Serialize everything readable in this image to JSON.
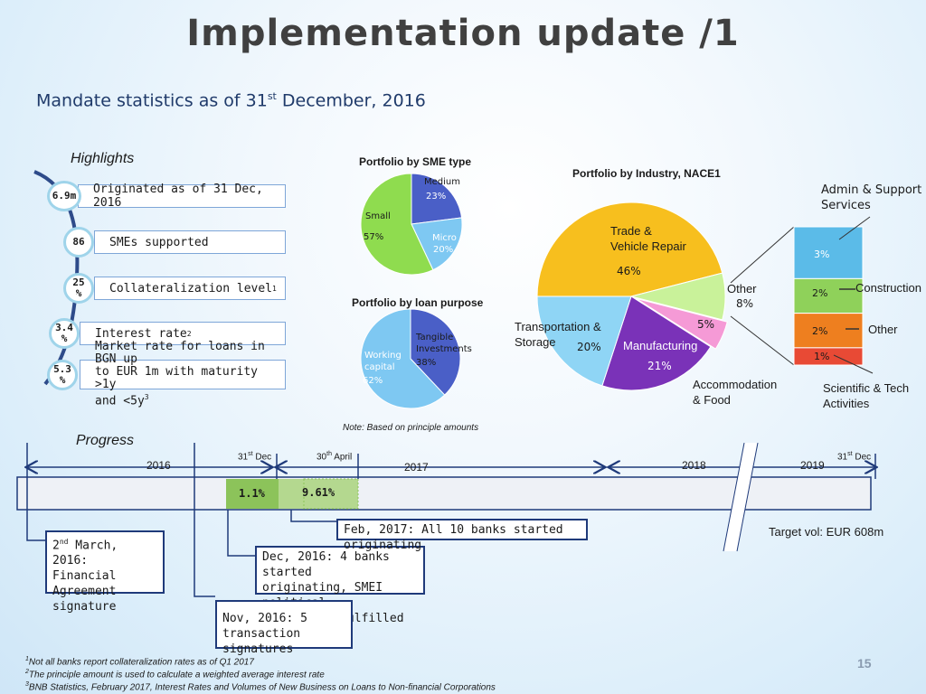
{
  "slide": {
    "title": "Implementation update /1",
    "subtitle_main": "Mandate statistics as of 31",
    "subtitle_sup": "st",
    "subtitle_rest": " December, 2016",
    "page_number": "15"
  },
  "highlights": {
    "title": "Highlights",
    "items": [
      {
        "value": "6.9m",
        "label": "Originated as of 31 Dec, 2016"
      },
      {
        "value": "86",
        "label": "SMEs supported"
      },
      {
        "value_top": "25",
        "value_bottom": "%",
        "label": "Collateralization level",
        "sup": "1"
      },
      {
        "value_top": "3.4",
        "value_bottom": "%",
        "label": "Interest rate",
        "sup": "2"
      },
      {
        "value_top": "5.3",
        "value_bottom": "%",
        "label_lines": [
          "Market rate for loans in BGN up",
          "to EUR 1m with maturity  >1y",
          "and <5y"
        ],
        "sup": "3"
      }
    ]
  },
  "chart_data": [
    {
      "type": "pie",
      "title": "Portfolio by SME type",
      "categories": [
        "Medium",
        "Micro",
        "Small"
      ],
      "values": [
        23,
        20,
        57
      ],
      "data_labels": [
        "23%",
        "20%",
        "57%"
      ],
      "colors": [
        "#4a5fc7",
        "#7ec8f2",
        "#8fdc4f"
      ]
    },
    {
      "type": "pie",
      "title": "Portfolio by loan purpose",
      "categories": [
        "Tangible Investments",
        "Working capital"
      ],
      "values": [
        38,
        62
      ],
      "data_labels": [
        "38%",
        "62%"
      ],
      "colors": [
        "#4a5fc7",
        "#7ec8f2"
      ]
    },
    {
      "type": "pie",
      "title": "Portfolio by Industry, NACE1",
      "categories": [
        "Trade & Vehicle Repair",
        "Other",
        "Accommodation & Food",
        "Manufacturing",
        "Transportation & Storage"
      ],
      "values": [
        46,
        8,
        5,
        21,
        20
      ],
      "data_labels": [
        "46%",
        "8%",
        "5%",
        "21%",
        "20%"
      ],
      "colors": [
        "#f7bf1e",
        "#c9f29a",
        "#f59ad6",
        "#7a32b8",
        "#8fd5f5"
      ],
      "breakdown": {
        "of": "Other",
        "categories": [
          "Admin & Support Services",
          "Construction",
          "Other",
          "Scientific & Tech Activities"
        ],
        "values": [
          3,
          2,
          2,
          1
        ],
        "data_labels": [
          "3%",
          "2%",
          "2%",
          "1%"
        ],
        "colors": [
          "#5bbbe8",
          "#8fd15a",
          "#ee7f1f",
          "#e84a35"
        ]
      },
      "note": "Note: Based on principle amounts"
    }
  ],
  "industry_labels": {
    "trade": [
      "Trade &",
      "Vehicle Repair"
    ],
    "other": "Other",
    "transport": [
      "Transportation &",
      "Storage"
    ],
    "manufacturing": "Manufacturing",
    "accommodation": [
      "Accommodation",
      "& Food"
    ],
    "admin": [
      "Admin & Support",
      "Services"
    ],
    "construction": "Construction",
    "other2": "Other",
    "scientific": [
      "Scientific & Tech",
      "Activities"
    ]
  },
  "sme_labels": {
    "medium": "Medium",
    "small": "Small",
    "micro": "Micro"
  },
  "loan_labels": {
    "tangible": [
      "Tangible",
      "Investments"
    ],
    "working": [
      "Working",
      "capital"
    ]
  },
  "progress": {
    "title": "Progress",
    "years": [
      "2016",
      "2017",
      "2018",
      "2019"
    ],
    "date_dec": "31",
    "date_dec_sup": "st",
    "date_dec_rest": " Dec",
    "date_apr": "30",
    "date_apr_sup": "th",
    "date_apr_rest": " April",
    "date_end": "31",
    "date_end_sup": "st",
    "date_end_rest": " Dec",
    "bar_dec_label": "1.1%",
    "bar_apr_label": "9.61%",
    "target": "Target vol: EUR 608m",
    "milestones": [
      {
        "pre": "2",
        "sup": "nd",
        "text": " March, 2016:",
        "lines": [
          "Financial",
          "Agreement",
          "signature"
        ]
      },
      {
        "lines": [
          "Dec, 2016: 4 banks started",
          "originating, SMEI political",
          "commitment fulfilled"
        ]
      },
      {
        "lines": [
          "Nov, 2016: 5",
          "transaction signatures"
        ]
      },
      {
        "lines": [
          "Feb, 2017: All 10 banks started originating"
        ]
      }
    ]
  },
  "footnotes": [
    {
      "num": "1",
      "text": "Not all banks report collateralization rates as of Q1 2017"
    },
    {
      "num": "2",
      "text": "The principle amount is used to calculate a weighted average interest rate"
    },
    {
      "num": "3",
      "text": "BNB Statistics, February 2017, Interest Rates and Volumes of New Business on Loans to Non-financial Corporations"
    }
  ]
}
